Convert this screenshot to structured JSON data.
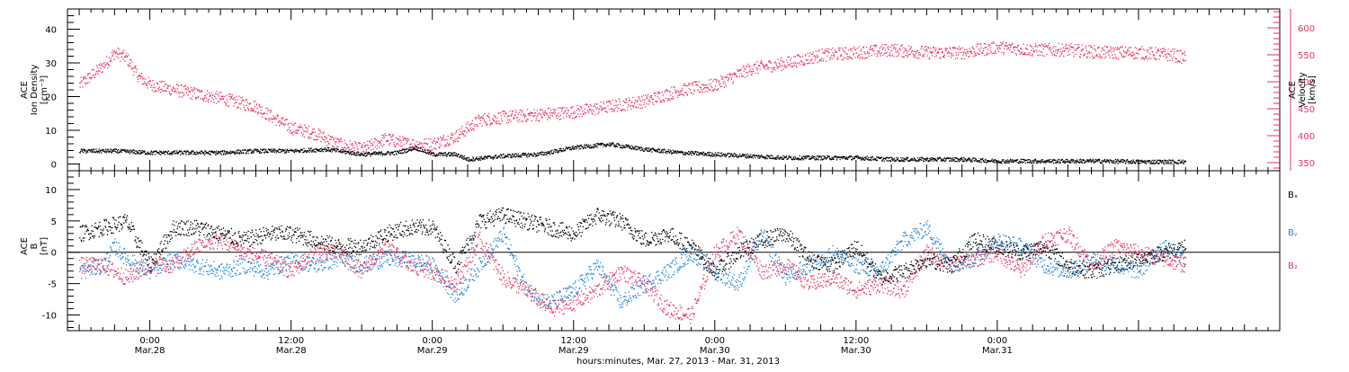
{
  "colors": {
    "black": "#000000",
    "pink": "#e8335f",
    "blue": "#1c84d8"
  },
  "chart_data": [
    {
      "type": "scatter",
      "panel": "density_velocity",
      "ylabel": [
        "ACE",
        "Ion Density",
        "[cm⁻³]"
      ],
      "y2label": [
        "ACE",
        "Velocity",
        "[km/s]"
      ],
      "ylim": [
        -2,
        46
      ],
      "yticks": [
        0,
        10,
        20,
        30,
        40
      ],
      "y2lim": [
        335,
        635
      ],
      "y2ticks": [
        350,
        400,
        450,
        500,
        550,
        600
      ],
      "series": [
        {
          "color": "black",
          "axis": "left",
          "x": [
            -6,
            -3,
            0,
            3,
            6,
            9,
            12,
            15,
            18,
            21,
            22.5,
            24,
            26,
            27,
            30,
            33,
            36,
            39,
            42,
            45,
            48,
            51,
            54,
            57,
            60,
            63,
            66,
            69,
            72,
            75,
            78,
            81,
            84,
            87,
            88
          ],
          "values": [
            4,
            4,
            3.5,
            3.5,
            3.5,
            4,
            4,
            4.5,
            3,
            3.5,
            5,
            3,
            3,
            1.5,
            2.5,
            3,
            5,
            6,
            4.5,
            3.5,
            3,
            2.5,
            2,
            2,
            2,
            1.5,
            1.5,
            1.5,
            1,
            1,
            1,
            1,
            0.8,
            0.8,
            0.8
          ]
        },
        {
          "color": "pink",
          "axis": "right",
          "x": [
            -6,
            -4,
            -3,
            -2,
            -1,
            0,
            3,
            6,
            9,
            10,
            12,
            14,
            16,
            18,
            20,
            22,
            24,
            26,
            28,
            30,
            33,
            36,
            39,
            42,
            45,
            48,
            51,
            54,
            57,
            60,
            63,
            66,
            69,
            72,
            75,
            78,
            81,
            84,
            87,
            88
          ],
          "values": [
            495,
            530,
            555,
            545,
            510,
            495,
            482,
            470,
            455,
            440,
            415,
            405,
            385,
            375,
            395,
            385,
            385,
            400,
            430,
            435,
            440,
            445,
            455,
            465,
            485,
            495,
            525,
            535,
            550,
            555,
            560,
            555,
            555,
            565,
            560,
            560,
            555,
            555,
            550,
            545
          ]
        }
      ]
    },
    {
      "type": "scatter",
      "panel": "magnetic_field",
      "ylabel": [
        "ACE",
        "B",
        "[nT]"
      ],
      "ylim": [
        -12.5,
        13
      ],
      "yticks": [
        -10,
        -5,
        0,
        5,
        10
      ],
      "legend": [
        "Bₓ",
        "Bᵧ",
        "B₂"
      ],
      "series": [
        {
          "name": "Bx",
          "color": "black",
          "x": [
            -6,
            -4,
            -2,
            0,
            2,
            4,
            6,
            8,
            10,
            12,
            14,
            16,
            18,
            20,
            22,
            24,
            26,
            28,
            30,
            32,
            34,
            36,
            38,
            40,
            42,
            44,
            46,
            48,
            50,
            52,
            54,
            56,
            58,
            60,
            62,
            64,
            66,
            68,
            70,
            72,
            74,
            76,
            78,
            80,
            82,
            84,
            86,
            88
          ],
          "values": [
            3,
            4,
            5,
            -2,
            4,
            4,
            3,
            2,
            3,
            3,
            2,
            1,
            1,
            3,
            4,
            4,
            -2,
            5,
            6,
            5,
            4,
            3,
            6,
            5,
            2,
            3,
            1,
            -3,
            0,
            2,
            3,
            -1,
            -2,
            1,
            -4,
            -3,
            -1,
            -2,
            2,
            1,
            0,
            1,
            -2,
            -3,
            -2,
            -1,
            0,
            1
          ]
        },
        {
          "name": "By",
          "color": "blue",
          "x": [
            -6,
            -4,
            -3,
            -2,
            0,
            2,
            4,
            6,
            8,
            10,
            12,
            14,
            16,
            18,
            20,
            22,
            24,
            26,
            28,
            30,
            32,
            34,
            36,
            38,
            40,
            42,
            44,
            46,
            48,
            50,
            52,
            54,
            56,
            58,
            60,
            62,
            64,
            66,
            68,
            70,
            72,
            74,
            76,
            78,
            80,
            82,
            84,
            86,
            88
          ],
          "values": [
            -3,
            -2,
            1,
            -1,
            -3,
            -1,
            -2,
            -3,
            -2,
            -3,
            -1,
            -2,
            -1,
            -2,
            -1,
            -1,
            -2,
            -7,
            -2,
            3,
            -6,
            -8,
            -6,
            -2,
            -8,
            -5,
            -3,
            0,
            -3,
            -5,
            3,
            -4,
            -2,
            0,
            -2,
            -3,
            2,
            4,
            -2,
            -1,
            2,
            1,
            -2,
            -3,
            -1,
            -2,
            -3,
            1,
            -1
          ]
        },
        {
          "name": "Bz",
          "color": "pink",
          "x": [
            -6,
            -4,
            -2,
            0,
            2,
            4,
            6,
            8,
            10,
            12,
            14,
            16,
            18,
            20,
            22,
            24,
            26,
            28,
            30,
            32,
            34,
            36,
            38,
            40,
            42,
            44,
            46,
            48,
            50,
            52,
            54,
            56,
            58,
            60,
            62,
            64,
            66,
            68,
            70,
            72,
            74,
            76,
            78,
            80,
            82,
            84,
            86,
            88
          ],
          "values": [
            -2,
            -2,
            -4,
            -2,
            -2,
            1,
            2,
            0,
            -1,
            -3,
            0,
            0,
            -3,
            1,
            -2,
            -3,
            -5,
            2,
            -4,
            -6,
            -9,
            -8,
            -6,
            -3,
            -5,
            -9,
            -10,
            0,
            3,
            -3,
            -2,
            -5,
            -4,
            -6,
            -5,
            -6,
            0,
            -2,
            -1,
            0,
            -3,
            2,
            3,
            -2,
            1,
            0,
            -1,
            -2
          ]
        }
      ]
    }
  ],
  "time_axis": {
    "xlim": [
      -7,
      96
    ],
    "ticks": [
      {
        "x": 0,
        "hour": "0:00",
        "date": "Mar.28"
      },
      {
        "x": 12,
        "hour": "12:00",
        "date": "Mar.28"
      },
      {
        "x": 24,
        "hour": "0:00",
        "date": "Mar.29"
      },
      {
        "x": 36,
        "hour": "12:00",
        "date": "Mar.29"
      },
      {
        "x": 48,
        "hour": "0:00",
        "date": "Mar.30"
      },
      {
        "x": 60,
        "hour": "12:00",
        "date": "Mar.30"
      },
      {
        "x": 72,
        "hour": "0:00",
        "date": "Mar.31"
      }
    ],
    "xlabel": "hours:minutes, Mar. 27, 2013 - Mar. 31, 2013"
  }
}
